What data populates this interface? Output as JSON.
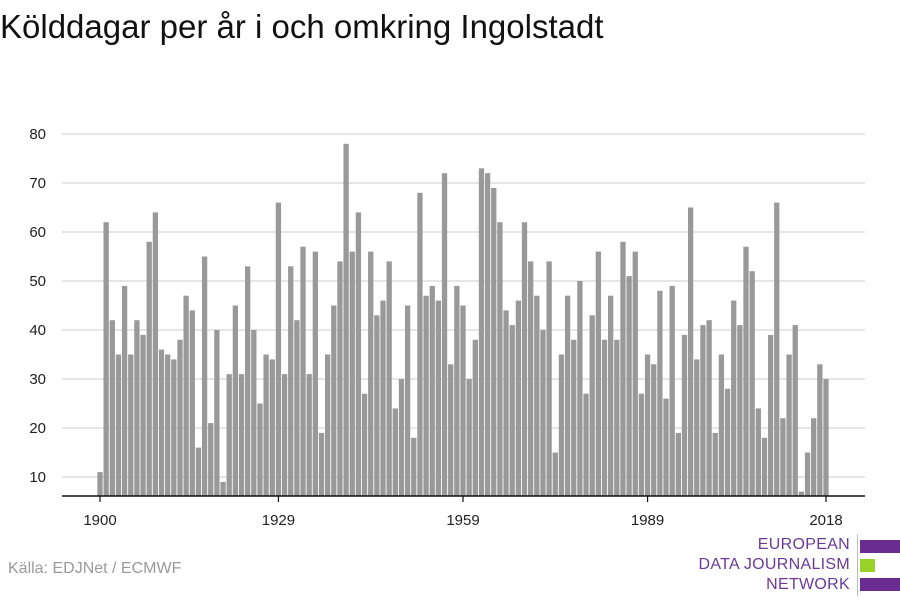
{
  "title": "Kölddagar per år i och omkring Ingolstadt",
  "source": "Källa: EDJNet / ECMWF",
  "logo": {
    "lines": [
      "EUROPEAN",
      "DATA JOURNALISM",
      "NETWORK"
    ],
    "colors": [
      "#6b2c91",
      "#9bd22a",
      "#6b2c91"
    ]
  },
  "colors": {
    "bar": "#999999",
    "grid": "#dddddd",
    "axis": "#111111"
  },
  "chart_data": {
    "type": "bar",
    "title": "Kölddagar per år i och omkring Ingolstadt",
    "xlabel": "",
    "ylabel": "",
    "x_ticks": [
      1900,
      1929,
      1959,
      1989,
      2018
    ],
    "y_ticks": [
      10,
      20,
      30,
      40,
      50,
      60,
      70,
      80
    ],
    "ylim": [
      6,
      81
    ],
    "grid": true,
    "x": [
      1900,
      1901,
      1902,
      1903,
      1904,
      1905,
      1906,
      1907,
      1908,
      1909,
      1910,
      1911,
      1912,
      1913,
      1914,
      1915,
      1916,
      1917,
      1918,
      1919,
      1920,
      1921,
      1922,
      1923,
      1924,
      1925,
      1926,
      1927,
      1928,
      1929,
      1930,
      1931,
      1932,
      1933,
      1934,
      1935,
      1936,
      1937,
      1938,
      1939,
      1940,
      1941,
      1942,
      1943,
      1944,
      1945,
      1946,
      1947,
      1948,
      1949,
      1950,
      1951,
      1952,
      1953,
      1954,
      1955,
      1956,
      1957,
      1958,
      1959,
      1960,
      1961,
      1962,
      1963,
      1964,
      1965,
      1966,
      1967,
      1968,
      1969,
      1970,
      1971,
      1972,
      1973,
      1974,
      1975,
      1976,
      1977,
      1978,
      1979,
      1980,
      1981,
      1982,
      1983,
      1984,
      1985,
      1986,
      1987,
      1988,
      1989,
      1990,
      1991,
      1992,
      1993,
      1994,
      1995,
      1996,
      1997,
      1998,
      1999,
      2000,
      2001,
      2002,
      2003,
      2004,
      2005,
      2006,
      2007,
      2008,
      2009,
      2010,
      2011,
      2012,
      2013,
      2014,
      2015,
      2016,
      2017,
      2018
    ],
    "values": [
      11,
      62,
      42,
      35,
      49,
      35,
      42,
      39,
      58,
      64,
      36,
      35,
      34,
      38,
      47,
      44,
      16,
      55,
      21,
      40,
      9,
      31,
      45,
      31,
      53,
      40,
      25,
      35,
      34,
      66,
      31,
      53,
      42,
      57,
      31,
      56,
      19,
      35,
      45,
      54,
      78,
      56,
      64,
      27,
      56,
      43,
      46,
      54,
      24,
      30,
      45,
      18,
      68,
      47,
      49,
      46,
      72,
      33,
      49,
      45,
      30,
      38,
      73,
      72,
      69,
      62,
      44,
      41,
      46,
      62,
      54,
      47,
      40,
      54,
      15,
      35,
      47,
      38,
      50,
      27,
      43,
      56,
      38,
      47,
      38,
      58,
      51,
      56,
      27,
      35,
      33,
      48,
      26,
      49,
      19,
      39,
      65,
      34,
      41,
      42,
      19,
      35,
      28,
      46,
      41,
      57,
      52,
      24,
      18,
      39,
      66,
      22,
      35,
      41,
      7,
      15,
      22,
      33,
      30
    ]
  }
}
